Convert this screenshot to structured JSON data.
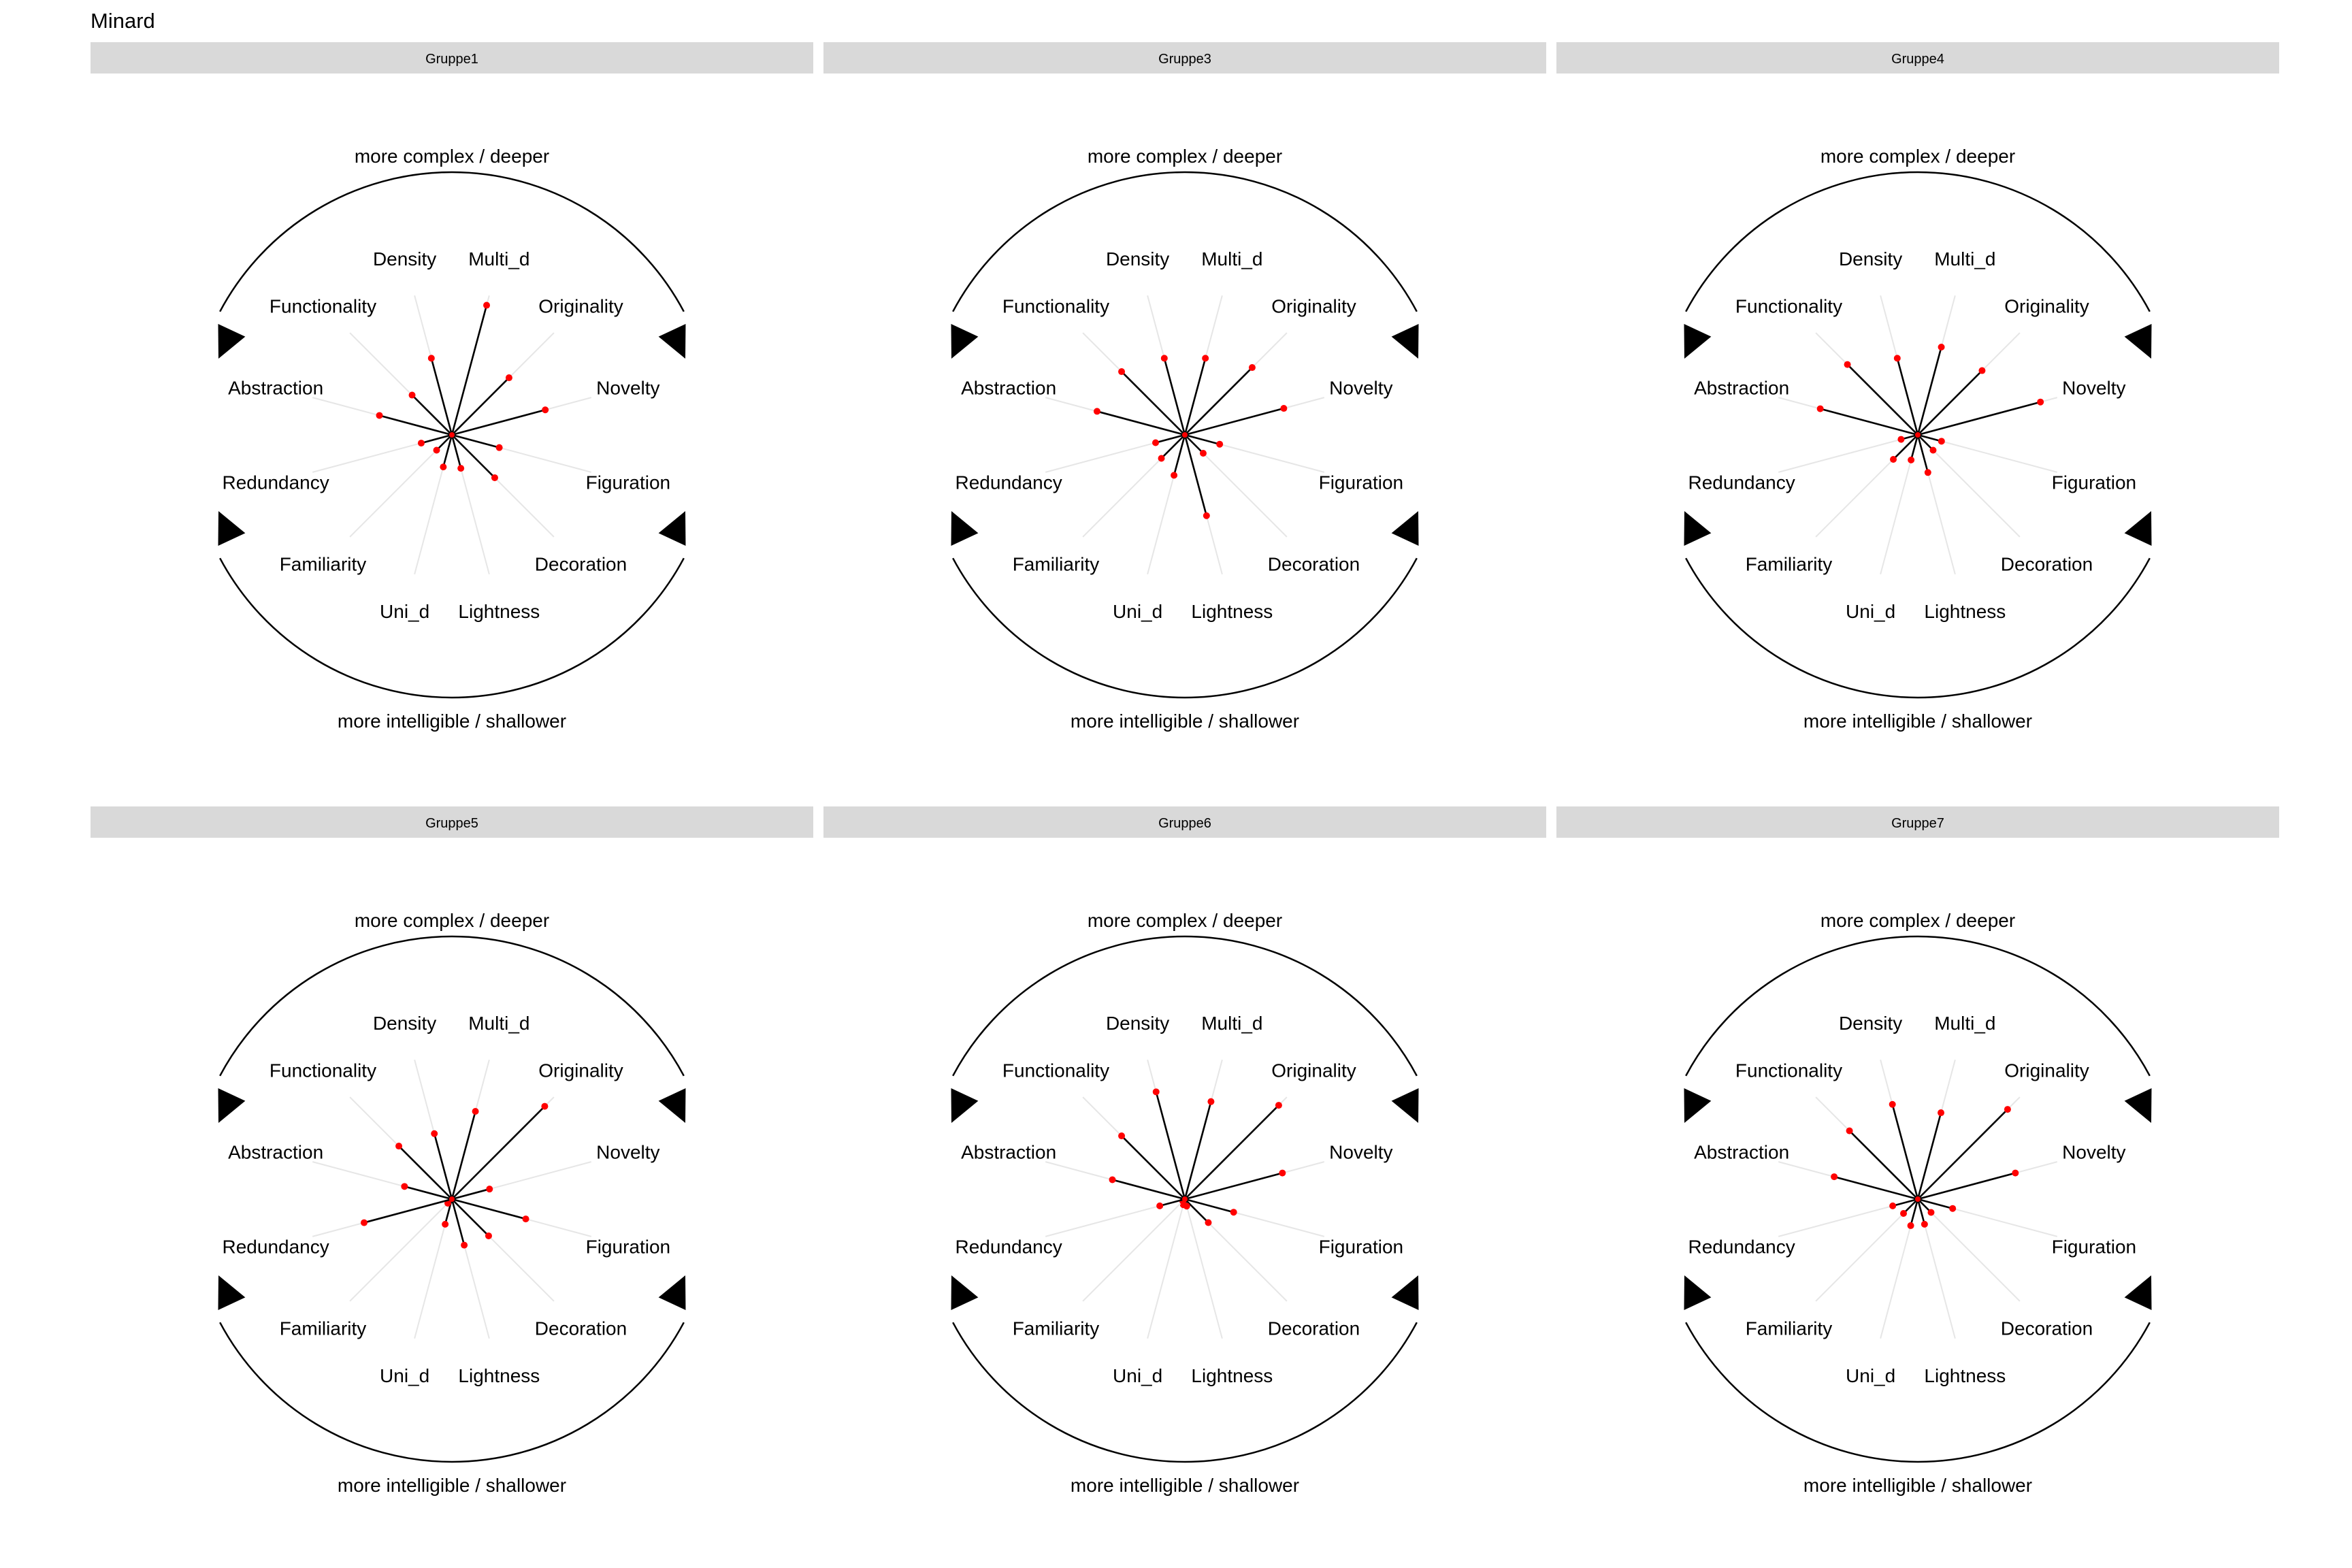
{
  "title": "Minard",
  "colors": {
    "strip": "#d9d9d9",
    "guide": "#e6e6e6",
    "segment": "#000000",
    "point": "#ff0000",
    "arc": "#000000"
  },
  "labels": {
    "top": "more complex / deeper",
    "bottom": "more intelligible / shallower"
  },
  "chart_data": [
    {
      "type": "radial-segment",
      "panel": "Gruppe1",
      "categories": [
        "Multi_d",
        "Originality",
        "Novelty",
        "Figuration",
        "Decoration",
        "Lightness",
        "Uni_d",
        "Familiarity",
        "Redundancy",
        "Abstraction",
        "Functionality",
        "Density"
      ],
      "values": [
        0.93,
        0.56,
        0.67,
        0.34,
        0.42,
        0.24,
        0.23,
        0.15,
        0.22,
        0.52,
        0.39,
        0.55
      ],
      "rlim": [
        0,
        1
      ]
    },
    {
      "type": "radial-segment",
      "panel": "Gruppe3",
      "categories": [
        "Multi_d",
        "Originality",
        "Novelty",
        "Figuration",
        "Decoration",
        "Lightness",
        "Uni_d",
        "Familiarity",
        "Redundancy",
        "Abstraction",
        "Functionality",
        "Density"
      ],
      "values": [
        0.55,
        0.66,
        0.71,
        0.25,
        0.18,
        0.58,
        0.29,
        0.23,
        0.21,
        0.63,
        0.62,
        0.55
      ]
    },
    {
      "type": "radial-segment",
      "panel": "Gruppe4",
      "categories": [
        "Multi_d",
        "Originality",
        "Novelty",
        "Figuration",
        "Decoration",
        "Lightness",
        "Uni_d",
        "Familiarity",
        "Redundancy",
        "Abstraction",
        "Functionality",
        "Density"
      ],
      "values": [
        0.63,
        0.63,
        0.88,
        0.17,
        0.15,
        0.27,
        0.18,
        0.24,
        0.12,
        0.7,
        0.69,
        0.55
      ]
    },
    {
      "type": "radial-segment",
      "panel": "Gruppe5",
      "categories": [
        "Multi_d",
        "Originality",
        "Novelty",
        "Figuration",
        "Decoration",
        "Lightness",
        "Uni_d",
        "Familiarity",
        "Redundancy",
        "Abstraction",
        "Functionality",
        "Density"
      ],
      "values": [
        0.63,
        0.91,
        0.27,
        0.53,
        0.36,
        0.33,
        0.18,
        0.04,
        0.63,
        0.34,
        0.52,
        0.47
      ]
    },
    {
      "type": "radial-segment",
      "panel": "Gruppe6",
      "categories": [
        "Multi_d",
        "Originality",
        "Novelty",
        "Figuration",
        "Decoration",
        "Lightness",
        "Uni_d",
        "Familiarity",
        "Redundancy",
        "Abstraction",
        "Functionality",
        "Density"
      ],
      "values": [
        0.7,
        0.92,
        0.7,
        0.35,
        0.23,
        0.05,
        0.04,
        0.02,
        0.18,
        0.52,
        0.62,
        0.77
      ]
    },
    {
      "type": "radial-segment",
      "panel": "Gruppe7",
      "categories": [
        "Multi_d",
        "Originality",
        "Novelty",
        "Figuration",
        "Decoration",
        "Lightness",
        "Uni_d",
        "Familiarity",
        "Redundancy",
        "Abstraction",
        "Functionality",
        "Density"
      ],
      "values": [
        0.62,
        0.88,
        0.7,
        0.25,
        0.13,
        0.18,
        0.19,
        0.14,
        0.18,
        0.6,
        0.67,
        0.68
      ]
    }
  ]
}
